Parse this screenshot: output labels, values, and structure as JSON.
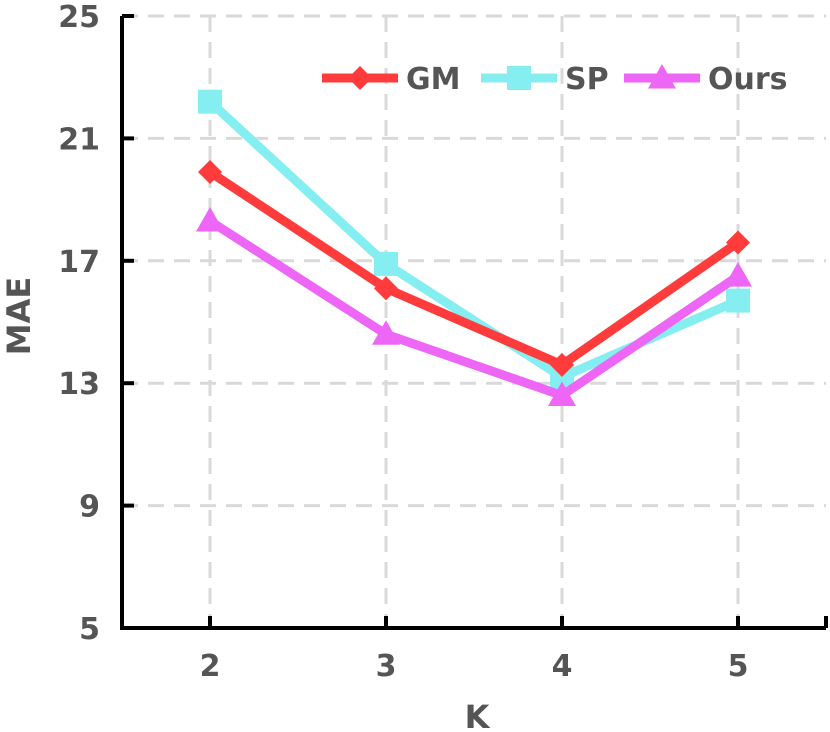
{
  "chart_data": {
    "type": "line",
    "title": "",
    "xlabel": "K",
    "ylabel": "MAE",
    "categories": [
      "2",
      "3",
      "4",
      "5"
    ],
    "x": [
      2,
      3,
      4,
      5
    ],
    "xlim": [
      1.5,
      5.5
    ],
    "ylim": [
      5,
      25
    ],
    "yticks": [
      5,
      9,
      13,
      17,
      21,
      25
    ],
    "grid": true,
    "legend_position": "top-right",
    "series": [
      {
        "name": "GM",
        "values": [
          19.9,
          16.1,
          13.6,
          17.6
        ],
        "color": "#ff3b3b",
        "marker": "diamond"
      },
      {
        "name": "SP",
        "values": [
          22.2,
          16.9,
          13.2,
          15.7
        ],
        "color": "#84eef0",
        "marker": "square"
      },
      {
        "name": "Ours",
        "values": [
          18.3,
          14.6,
          12.6,
          16.5
        ],
        "color": "#ee66f5",
        "marker": "triangle"
      }
    ]
  }
}
